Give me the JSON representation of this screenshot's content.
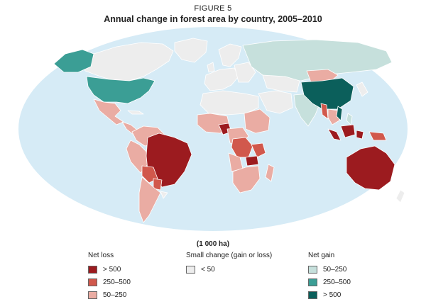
{
  "figure": {
    "label": "FIGURE 5",
    "title": "Annual change in forest area by country, 2005–2010"
  },
  "colors": {
    "ocean": "#d6ebf6",
    "border": "#ffffff",
    "loss_high": "#9c1b1f",
    "loss_mid": "#d1584c",
    "loss_low": "#eaaca3",
    "small": "#ededed",
    "gain_low": "#c6e0dc",
    "gain_mid": "#3b9e95",
    "gain_high": "#0b5f5b"
  },
  "legend": {
    "units": "(1 000 ha)",
    "groups": [
      {
        "title": "Net loss",
        "items": [
          {
            "label": "> 500",
            "color": "#9c1b1f"
          },
          {
            "label": "250–500",
            "color": "#d1584c"
          },
          {
            "label": "50–250",
            "color": "#eaaca3"
          }
        ]
      },
      {
        "title": "Small change (gain or loss)",
        "items": [
          {
            "label": "< 50",
            "color": "#ededed"
          }
        ]
      },
      {
        "title": "Net gain",
        "items": [
          {
            "label": "50–250",
            "color": "#c6e0dc"
          },
          {
            "label": "250–500",
            "color": "#3b9e95"
          },
          {
            "label": "> 500",
            "color": "#0b5f5b"
          }
        ]
      }
    ]
  }
}
